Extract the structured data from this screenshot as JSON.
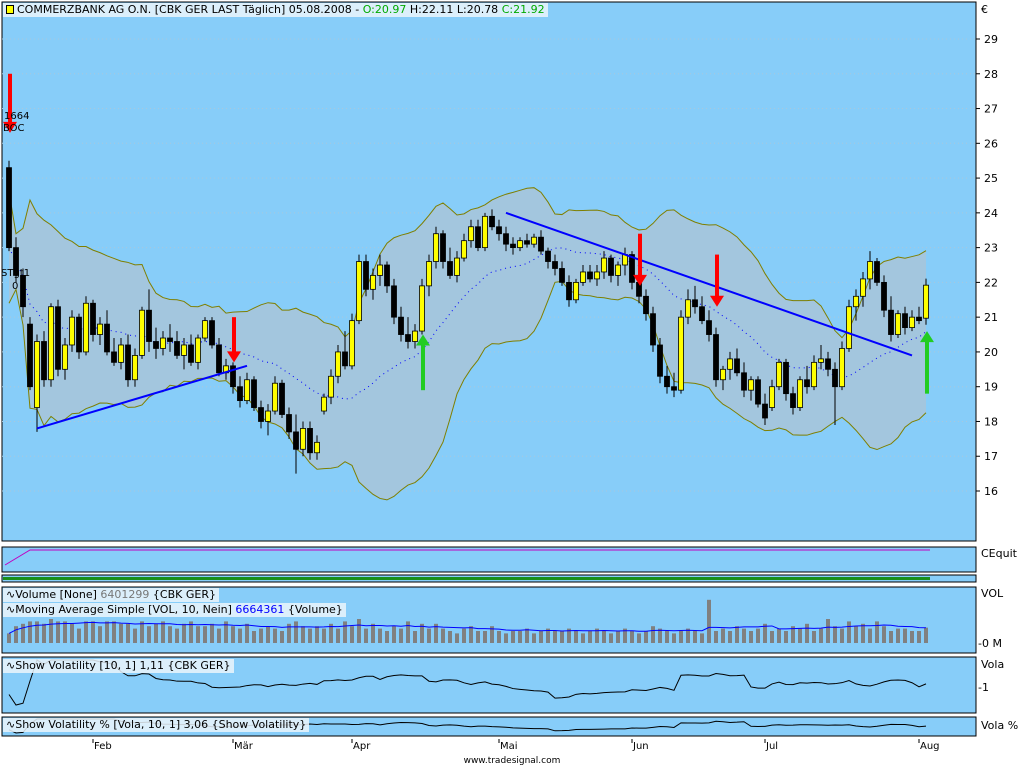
{
  "header": {
    "symbol_icon": "candle-icon",
    "title": "COMMERZBANK AG O.N. [CBK GER LAST Täglich] 05.08.2008 -",
    "open": "O:20.97",
    "high": "H:22.11",
    "low": "L:20.78",
    "close": "C:21.92"
  },
  "currency": "€",
  "signals": {
    "top_label_1": "1664",
    "top_label_2": "BOC",
    "stop_label_1": "STgt1",
    "stop_label_2": "0"
  },
  "panels": {
    "equity": {
      "axis": "CEquit"
    },
    "volume": {
      "axis": "VOL",
      "zero": "0 M",
      "legend1_name": "Volume [None]",
      "legend1_value": "6401299",
      "legend1_tail": "{CBK GER}",
      "legend2_name": "Moving Average Simple [VOL, 10, Nein]",
      "legend2_value": "6664361",
      "legend2_tail": "{Volume}"
    },
    "volatility": {
      "axis": "Vola",
      "tick": "1",
      "legend": "Show Volatility [10, 1] 1,11 {CBK GER}"
    },
    "volatility_pct": {
      "axis": "Vola %",
      "legend": "Show Volatility % [Vola, 10, 1] 3,06 {Show Volatility}"
    }
  },
  "footer": "www.tradesignal.com",
  "colors": {
    "panel_bg": "#87cdf9",
    "band_fill": "#a3c6de",
    "band_edge": "#7f7f00",
    "up": "#ffff00",
    "down": "#000000",
    "trend": "#0000ff",
    "sell_arrow": "#ff0000",
    "buy_arrow": "#22cc22",
    "equity": "#c000c0",
    "volume_bar": "#808080"
  },
  "chart_data": {
    "type": "candlestick",
    "ylim": [
      15,
      30
    ],
    "yticks": [
      29,
      28,
      27,
      26,
      25,
      24,
      23,
      22,
      21,
      20,
      19,
      18,
      17,
      16
    ],
    "months": [
      {
        "label": "Feb",
        "index": 12
      },
      {
        "label": "Mär",
        "index": 32
      },
      {
        "label": "Apr",
        "index": 49
      },
      {
        "label": "Mai",
        "index": 70
      },
      {
        "label": "Jun",
        "index": 89
      },
      {
        "label": "Jul",
        "index": 108
      },
      {
        "label": "Aug",
        "index": 130
      }
    ],
    "ohlc": [
      [
        25.3,
        25.5,
        22.9,
        23.0
      ],
      [
        23.0,
        23.3,
        22.0,
        22.2
      ],
      [
        22.2,
        22.4,
        21.0,
        21.3
      ],
      [
        20.8,
        21.0,
        18.9,
        19.0
      ],
      [
        18.4,
        20.5,
        17.7,
        20.3
      ],
      [
        20.3,
        20.6,
        19.0,
        19.2
      ],
      [
        19.2,
        21.4,
        19.0,
        21.3
      ],
      [
        21.3,
        21.5,
        19.3,
        19.5
      ],
      [
        19.5,
        20.4,
        19.2,
        20.2
      ],
      [
        20.2,
        21.2,
        20.0,
        21.0
      ],
      [
        21.0,
        21.1,
        19.8,
        20.0
      ],
      [
        20.0,
        21.6,
        19.9,
        21.4
      ],
      [
        21.4,
        21.5,
        20.3,
        20.5
      ],
      [
        20.5,
        21.0,
        20.2,
        20.8
      ],
      [
        20.8,
        21.2,
        19.9,
        20.0
      ],
      [
        20.0,
        20.4,
        19.6,
        19.7
      ],
      [
        19.7,
        20.4,
        19.5,
        20.2
      ],
      [
        20.2,
        20.5,
        19.0,
        19.2
      ],
      [
        19.2,
        20.1,
        19.0,
        19.9
      ],
      [
        19.9,
        21.3,
        19.8,
        21.2
      ],
      [
        21.2,
        21.8,
        20.0,
        20.3
      ],
      [
        20.3,
        20.7,
        19.8,
        20.1
      ],
      [
        20.1,
        20.6,
        19.9,
        20.4
      ],
      [
        20.4,
        20.8,
        20.0,
        20.3
      ],
      [
        20.3,
        20.6,
        19.8,
        19.9
      ],
      [
        19.9,
        20.4,
        19.5,
        20.2
      ],
      [
        20.2,
        20.5,
        19.6,
        19.7
      ],
      [
        19.7,
        20.5,
        19.5,
        20.4
      ],
      [
        20.4,
        21.0,
        20.3,
        20.9
      ],
      [
        20.9,
        21.0,
        20.1,
        20.2
      ],
      [
        20.2,
        20.4,
        19.3,
        19.4
      ],
      [
        19.4,
        19.8,
        19.2,
        19.6
      ],
      [
        19.6,
        19.7,
        18.8,
        19.0
      ],
      [
        19.0,
        19.3,
        18.4,
        18.6
      ],
      [
        18.6,
        19.4,
        18.5,
        19.2
      ],
      [
        19.2,
        19.3,
        18.3,
        18.4
      ],
      [
        18.4,
        18.6,
        17.8,
        18.0
      ],
      [
        18.0,
        18.5,
        17.6,
        18.3
      ],
      [
        18.3,
        19.3,
        18.2,
        19.1
      ],
      [
        19.1,
        19.2,
        18.1,
        18.2
      ],
      [
        18.2,
        18.4,
        17.5,
        17.7
      ],
      [
        17.7,
        18.2,
        16.5,
        17.2
      ],
      [
        17.2,
        18.0,
        17.0,
        17.8
      ],
      [
        17.8,
        18.0,
        16.9,
        17.1
      ],
      [
        17.1,
        17.6,
        16.9,
        17.4
      ],
      [
        18.3,
        18.8,
        18.2,
        18.7
      ],
      [
        18.7,
        19.5,
        18.5,
        19.3
      ],
      [
        19.3,
        20.2,
        19.1,
        20.0
      ],
      [
        20.0,
        20.6,
        19.5,
        19.6
      ],
      [
        19.6,
        21.1,
        19.5,
        20.9
      ],
      [
        20.9,
        22.8,
        20.8,
        22.6
      ],
      [
        22.6,
        22.8,
        21.6,
        21.8
      ],
      [
        21.8,
        22.4,
        21.5,
        22.2
      ],
      [
        22.2,
        22.8,
        21.9,
        22.5
      ],
      [
        22.5,
        22.6,
        21.7,
        21.9
      ],
      [
        21.9,
        22.1,
        20.8,
        21.0
      ],
      [
        21.0,
        21.3,
        20.3,
        20.5
      ],
      [
        20.5,
        21.0,
        20.1,
        20.3
      ],
      [
        20.3,
        20.8,
        20.1,
        20.6
      ],
      [
        20.6,
        22.1,
        20.5,
        21.9
      ],
      [
        21.9,
        22.8,
        21.6,
        22.6
      ],
      [
        22.6,
        23.6,
        22.4,
        23.4
      ],
      [
        23.4,
        23.5,
        22.4,
        22.6
      ],
      [
        22.6,
        23.0,
        22.1,
        22.2
      ],
      [
        22.2,
        22.9,
        22.0,
        22.7
      ],
      [
        22.7,
        23.4,
        22.6,
        23.2
      ],
      [
        23.2,
        23.8,
        23.0,
        23.6
      ],
      [
        23.6,
        23.8,
        22.9,
        23.0
      ],
      [
        23.0,
        24.0,
        22.9,
        23.9
      ],
      [
        23.9,
        24.1,
        23.5,
        23.6
      ],
      [
        23.6,
        23.8,
        23.2,
        23.4
      ],
      [
        23.4,
        23.6,
        22.9,
        23.1
      ],
      [
        23.1,
        23.3,
        22.8,
        23.0
      ],
      [
        23.0,
        23.3,
        22.9,
        23.2
      ],
      [
        23.2,
        23.4,
        23.0,
        23.1
      ],
      [
        23.1,
        23.4,
        23.0,
        23.3
      ],
      [
        23.3,
        23.5,
        22.8,
        22.9
      ],
      [
        22.9,
        23.0,
        22.4,
        22.6
      ],
      [
        22.6,
        22.8,
        22.2,
        22.4
      ],
      [
        22.4,
        22.6,
        21.9,
        22.0
      ],
      [
        22.0,
        22.2,
        21.3,
        21.5
      ],
      [
        21.5,
        22.1,
        21.4,
        22.0
      ],
      [
        22.0,
        22.5,
        21.9,
        22.3
      ],
      [
        22.3,
        22.5,
        22.0,
        22.1
      ],
      [
        22.1,
        22.5,
        21.9,
        22.3
      ],
      [
        22.3,
        22.9,
        22.1,
        22.7
      ],
      [
        22.7,
        22.8,
        22.0,
        22.2
      ],
      [
        22.2,
        22.6,
        21.9,
        22.5
      ],
      [
        22.5,
        23.0,
        22.2,
        22.8
      ],
      [
        22.8,
        22.9,
        21.8,
        22.0
      ],
      [
        22.0,
        22.2,
        21.4,
        21.6
      ],
      [
        21.6,
        21.8,
        20.9,
        21.1
      ],
      [
        21.1,
        21.3,
        20.0,
        20.2
      ],
      [
        20.2,
        20.4,
        19.1,
        19.3
      ],
      [
        19.3,
        19.6,
        18.8,
        19.0
      ],
      [
        19.0,
        19.4,
        18.7,
        18.9
      ],
      [
        18.9,
        21.2,
        18.8,
        21.0
      ],
      [
        21.0,
        21.8,
        20.8,
        21.5
      ],
      [
        21.5,
        21.9,
        21.1,
        21.3
      ],
      [
        21.3,
        21.6,
        20.8,
        20.9
      ],
      [
        20.9,
        21.2,
        20.3,
        20.5
      ],
      [
        20.5,
        20.7,
        19.0,
        19.2
      ],
      [
        19.2,
        19.6,
        18.9,
        19.5
      ],
      [
        19.5,
        20.0,
        19.2,
        19.8
      ],
      [
        19.8,
        20.1,
        19.3,
        19.4
      ],
      [
        19.4,
        19.7,
        18.7,
        18.9
      ],
      [
        18.9,
        19.3,
        18.6,
        19.2
      ],
      [
        19.2,
        19.3,
        18.4,
        18.5
      ],
      [
        18.5,
        18.8,
        17.9,
        18.1
      ],
      [
        18.4,
        19.2,
        18.3,
        19.0
      ],
      [
        19.0,
        19.8,
        18.9,
        19.7
      ],
      [
        19.7,
        19.8,
        18.6,
        18.8
      ],
      [
        18.8,
        19.0,
        18.2,
        18.4
      ],
      [
        18.4,
        19.3,
        18.3,
        19.2
      ],
      [
        19.2,
        19.6,
        18.8,
        19.0
      ],
      [
        19.0,
        19.9,
        18.9,
        19.7
      ],
      [
        19.7,
        20.2,
        19.5,
        19.8
      ],
      [
        19.8,
        20.0,
        19.3,
        19.5
      ],
      [
        19.5,
        19.7,
        17.9,
        19.0
      ],
      [
        19.0,
        20.3,
        18.9,
        20.1
      ],
      [
        20.1,
        21.5,
        20.0,
        21.3
      ],
      [
        21.3,
        21.8,
        20.9,
        21.6
      ],
      [
        21.6,
        22.3,
        21.3,
        22.1
      ],
      [
        22.1,
        22.9,
        21.8,
        22.6
      ],
      [
        22.6,
        22.7,
        21.9,
        22.0
      ],
      [
        22.0,
        22.2,
        21.0,
        21.2
      ],
      [
        21.2,
        21.6,
        20.3,
        20.5
      ],
      [
        20.5,
        21.2,
        20.4,
        21.1
      ],
      [
        21.1,
        21.3,
        20.5,
        20.7
      ],
      [
        20.7,
        21.2,
        20.6,
        21.0
      ],
      [
        21.0,
        21.3,
        20.8,
        20.9
      ],
      [
        20.97,
        22.11,
        20.78,
        21.92
      ]
    ],
    "volume_m": [
      4,
      7,
      8,
      9,
      9,
      8,
      10,
      9,
      9,
      8,
      6,
      9,
      9,
      7,
      9,
      9,
      8,
      8,
      6,
      9,
      7,
      8,
      9,
      7,
      6,
      8,
      9,
      7,
      7,
      8,
      6,
      9,
      7,
      6,
      8,
      5,
      6,
      7,
      6,
      5,
      8,
      9,
      7,
      6,
      7,
      6,
      8,
      6,
      9,
      7,
      10,
      6,
      8,
      6,
      5,
      7,
      6,
      9,
      5,
      8,
      6,
      8,
      6,
      5,
      4,
      6,
      7,
      5,
      5,
      7,
      5,
      4,
      5,
      5,
      6,
      4,
      5,
      6,
      5,
      5,
      6,
      5,
      4,
      5,
      6,
      5,
      4,
      5,
      6,
      5,
      4,
      5,
      7,
      6,
      5,
      4,
      5,
      6,
      5,
      4,
      18,
      5,
      6,
      5,
      7,
      6,
      5,
      6,
      8,
      5,
      6,
      5,
      7,
      6,
      8,
      5,
      6,
      10,
      7,
      6,
      9,
      7,
      8,
      6,
      9,
      7,
      5,
      6,
      6,
      5,
      5,
      6.4
    ],
    "trendlines": [
      {
        "from": [
          4,
          17.8
        ],
        "to": [
          34,
          19.6
        ]
      },
      {
        "from": [
          71,
          24.0
        ],
        "to": [
          129,
          19.9
        ]
      }
    ],
    "sell_signals": [
      {
        "index": 0,
        "from": 28.0,
        "to": 26.3
      },
      {
        "index": 32,
        "from": 21.0,
        "to": 19.7
      },
      {
        "index": 90,
        "from": 23.4,
        "to": 21.9
      },
      {
        "index": 101,
        "from": 22.8,
        "to": 21.3
      }
    ],
    "buy_signals": [
      {
        "index": 59,
        "from": 18.9,
        "to": 20.5
      },
      {
        "index": 131,
        "from": 18.8,
        "to": 20.6
      }
    ],
    "indicators": [
      "Bollinger Bands",
      "Moving Average",
      "Volume",
      "Show Volatility",
      "Show Volatility %"
    ]
  }
}
